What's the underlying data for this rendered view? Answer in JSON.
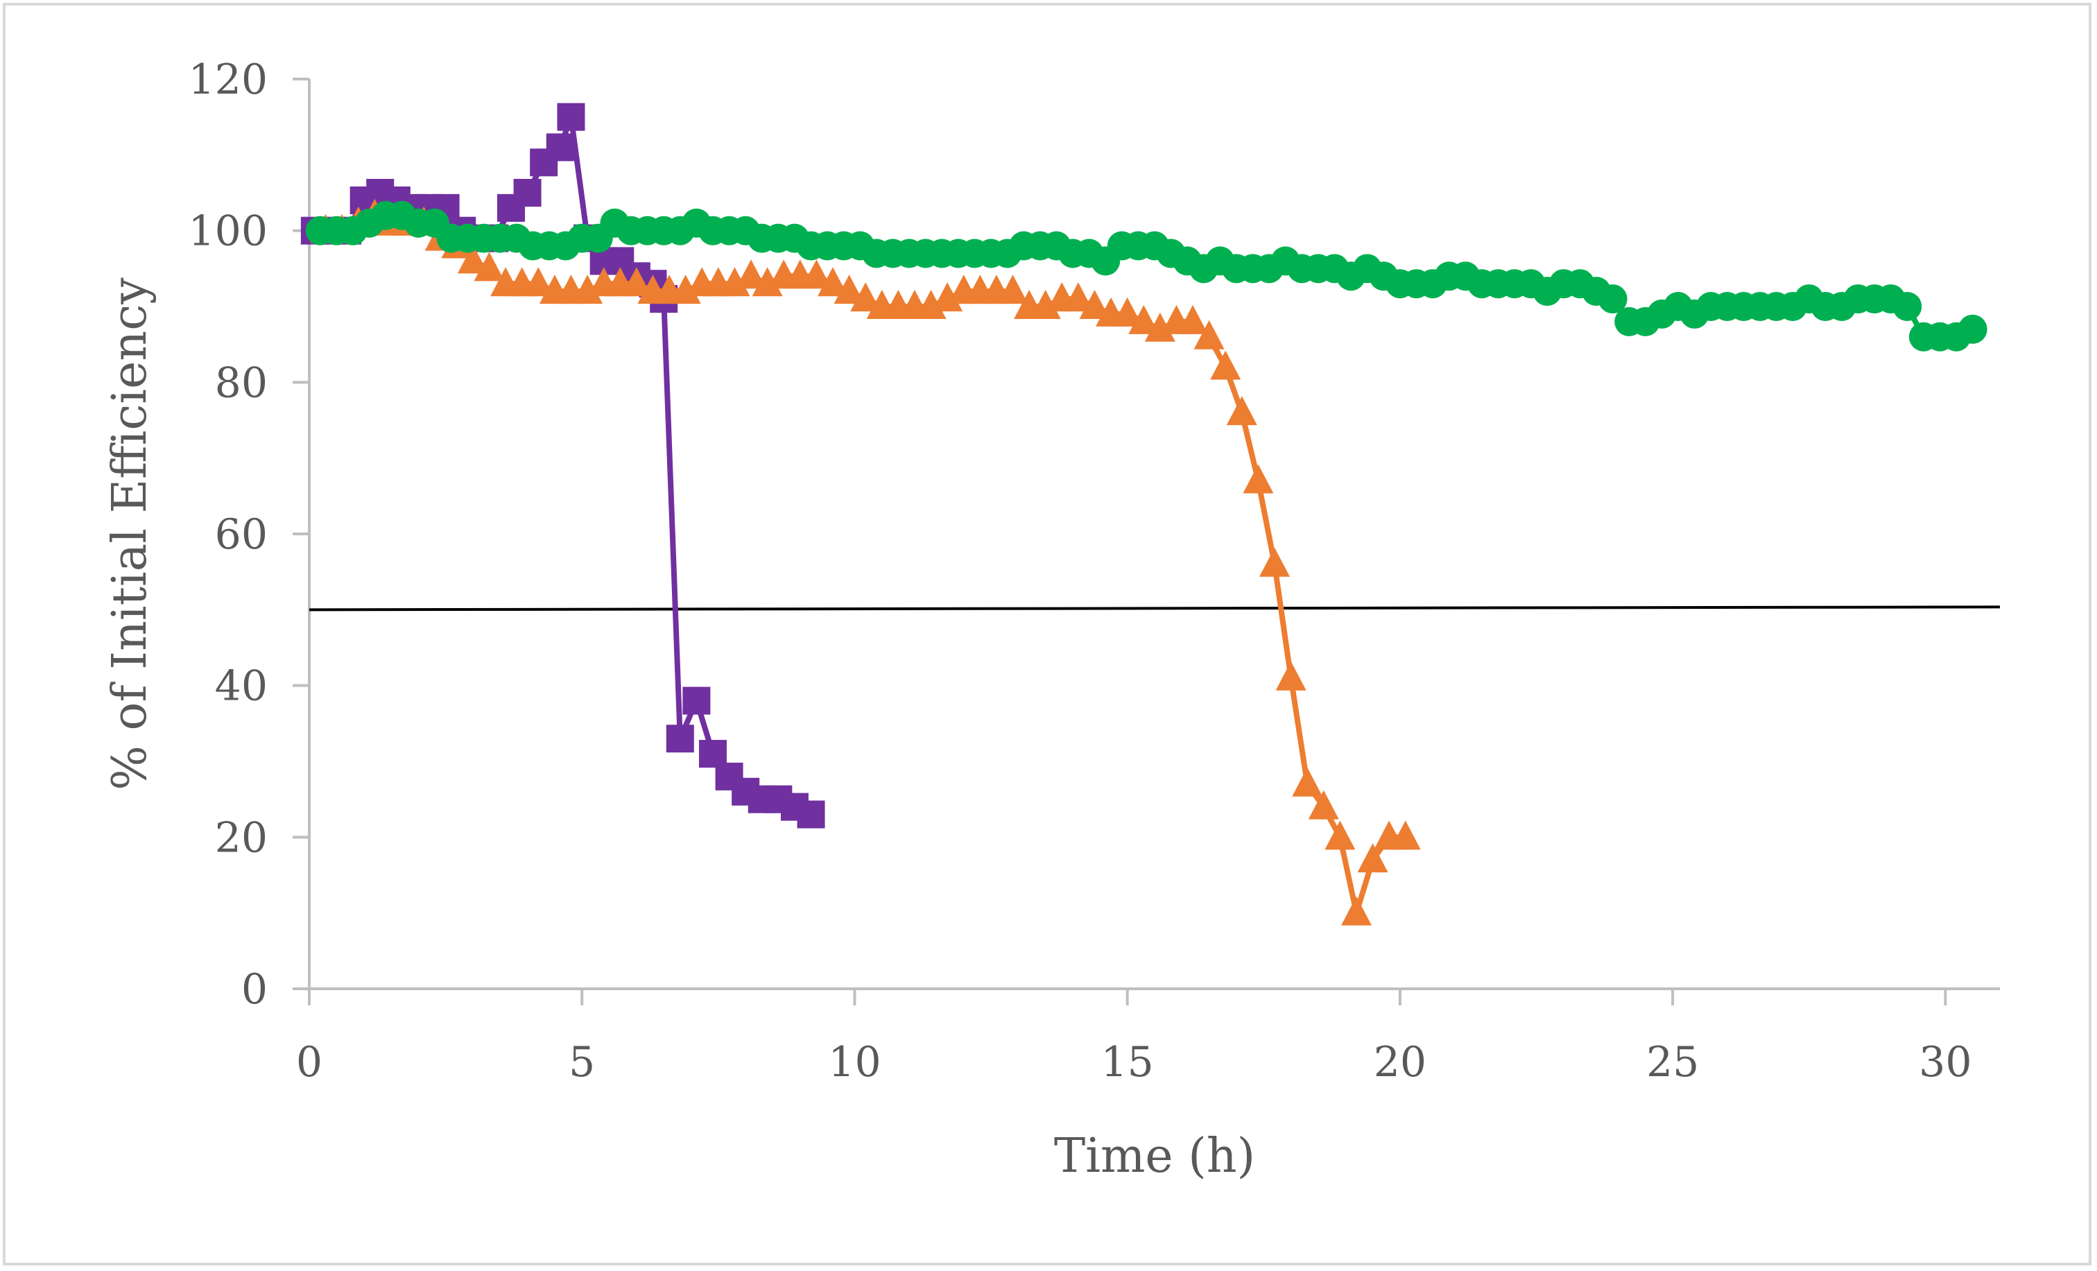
{
  "chart_data": {
    "type": "line",
    "xlabel": "Time (h)",
    "ylabel": "% of Initial Efficiency",
    "xlim": [
      0,
      31
    ],
    "ylim": [
      0,
      120
    ],
    "xticks": [
      "0",
      "5",
      "10",
      "15",
      "20",
      "25",
      "30"
    ],
    "yticks": [
      "0",
      "20",
      "40",
      "60",
      "80",
      "100",
      "120"
    ],
    "grid": false,
    "legend": "none",
    "reference_line": {
      "y": 50,
      "color": "#000000"
    },
    "series": [
      {
        "marker": "square",
        "color": "#7030a0",
        "x": [
          0.1,
          0.4,
          0.7,
          1.0,
          1.3,
          1.6,
          1.9,
          2.2,
          2.5,
          2.8,
          3.1,
          3.4,
          3.7,
          4.0,
          4.3,
          4.6,
          4.8,
          5.1,
          5.4,
          5.7,
          6.0,
          6.3,
          6.5,
          6.8,
          7.1,
          7.4,
          7.7,
          8.0,
          8.3,
          8.6,
          8.9,
          9.2
        ],
        "y": [
          100,
          100,
          100,
          104,
          105,
          104,
          103,
          103,
          103,
          100,
          99,
          99,
          103,
          105,
          109,
          111,
          115,
          99,
          96,
          96,
          94,
          93,
          91,
          33,
          38,
          31,
          28,
          26,
          25,
          25,
          24,
          23
        ]
      },
      {
        "marker": "triangle",
        "color": "#ed7d31",
        "x": [
          0.3,
          0.6,
          0.9,
          1.2,
          1.5,
          1.8,
          2.1,
          2.4,
          2.7,
          3.0,
          3.3,
          3.6,
          3.9,
          4.2,
          4.5,
          4.8,
          5.1,
          5.4,
          5.7,
          6.0,
          6.3,
          6.6,
          6.9,
          7.2,
          7.5,
          7.8,
          8.1,
          8.4,
          8.7,
          9.0,
          9.3,
          9.6,
          9.9,
          10.2,
          10.5,
          10.8,
          11.1,
          11.4,
          11.7,
          12.0,
          12.3,
          12.6,
          12.9,
          13.2,
          13.5,
          13.8,
          14.1,
          14.4,
          14.7,
          15.0,
          15.3,
          15.6,
          15.9,
          16.2,
          16.5,
          16.8,
          17.1,
          17.4,
          17.7,
          18.0,
          18.3,
          18.6,
          18.9,
          19.2,
          19.5,
          19.8,
          20.1
        ],
        "y": [
          100,
          100,
          101,
          102,
          101,
          101,
          101,
          99,
          98,
          96,
          95,
          93,
          93,
          93,
          92,
          92,
          92,
          93,
          93,
          93,
          92,
          92,
          92,
          93,
          93,
          93,
          94,
          93,
          94,
          94,
          94,
          93,
          92,
          91,
          90,
          90,
          90,
          90,
          91,
          92,
          92,
          92,
          92,
          90,
          90,
          91,
          91,
          90,
          89,
          89,
          88,
          87,
          88,
          88,
          86,
          82,
          76,
          67,
          56,
          41,
          27,
          24,
          20,
          10,
          17,
          20,
          20
        ]
      },
      {
        "marker": "circle",
        "color": "#00b050",
        "x": [
          0.2,
          0.5,
          0.8,
          1.1,
          1.4,
          1.7,
          2.0,
          2.3,
          2.6,
          2.9,
          3.2,
          3.5,
          3.8,
          4.1,
          4.4,
          4.7,
          5.0,
          5.3,
          5.6,
          5.9,
          6.2,
          6.5,
          6.8,
          7.1,
          7.4,
          7.7,
          8.0,
          8.3,
          8.6,
          8.9,
          9.2,
          9.5,
          9.8,
          10.1,
          10.4,
          10.7,
          11.0,
          11.3,
          11.6,
          11.9,
          12.2,
          12.5,
          12.8,
          13.1,
          13.4,
          13.7,
          14.0,
          14.3,
          14.6,
          14.9,
          15.2,
          15.5,
          15.8,
          16.1,
          16.4,
          16.7,
          17.0,
          17.3,
          17.6,
          17.9,
          18.2,
          18.5,
          18.8,
          19.1,
          19.4,
          19.7,
          20.0,
          20.3,
          20.6,
          20.9,
          21.2,
          21.5,
          21.8,
          22.1,
          22.4,
          22.7,
          23.0,
          23.3,
          23.6,
          23.9,
          24.2,
          24.5,
          24.8,
          25.1,
          25.4,
          25.7,
          26.0,
          26.3,
          26.6,
          26.9,
          27.2,
          27.5,
          27.8,
          28.1,
          28.4,
          28.7,
          29.0,
          29.3,
          29.6,
          29.9,
          30.2,
          30.5
        ],
        "y": [
          100,
          100,
          100,
          101,
          102,
          102,
          101,
          101,
          99,
          99,
          99,
          99,
          99,
          98,
          98,
          98,
          99,
          99,
          101,
          100,
          100,
          100,
          100,
          101,
          100,
          100,
          100,
          99,
          99,
          99,
          98,
          98,
          98,
          98,
          97,
          97,
          97,
          97,
          97,
          97,
          97,
          97,
          97,
          98,
          98,
          98,
          97,
          97,
          96,
          98,
          98,
          98,
          97,
          96,
          95,
          96,
          95,
          95,
          95,
          96,
          95,
          95,
          95,
          94,
          95,
          94,
          93,
          93,
          93,
          94,
          94,
          93,
          93,
          93,
          93,
          92,
          93,
          93,
          92,
          91,
          88,
          88,
          89,
          90,
          89,
          90,
          90,
          90,
          90,
          90,
          90,
          91,
          90,
          90,
          91,
          91,
          91,
          90,
          86,
          86,
          86,
          87
        ]
      }
    ]
  }
}
